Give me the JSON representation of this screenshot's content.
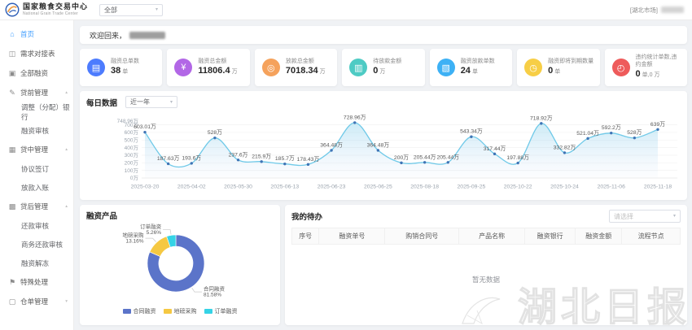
{
  "header": {
    "brand_name": "国家粮食交易中心",
    "brand_subtitle": "National Grain Trade Center",
    "market_filter_value": "全部",
    "user_market_tag": "[湖北市场]"
  },
  "icons": {
    "chevron_down": "▾",
    "chevron_up": "▴"
  },
  "sidebar": {
    "items": [
      {
        "label": "首页",
        "glyph": "⌂",
        "active": true
      },
      {
        "label": "需求对接表",
        "glyph": "◫"
      },
      {
        "label": "全部融资",
        "glyph": "▣"
      },
      {
        "label": "贷前管理",
        "glyph": "✎",
        "chevron": "▴"
      },
      {
        "label": "调整（分配）银行"
      },
      {
        "label": "融资审核"
      },
      {
        "label": "贷中管理",
        "glyph": "▦",
        "chevron": "▴"
      },
      {
        "label": "协议签订"
      },
      {
        "label": "放款入账"
      },
      {
        "label": "贷后管理",
        "glyph": "▩",
        "chevron": "▴"
      },
      {
        "label": "还款审核"
      },
      {
        "label": "商务还款审核"
      },
      {
        "label": "融资解冻"
      },
      {
        "label": "特殊处理",
        "glyph": "⚑"
      },
      {
        "label": "仓单管理",
        "glyph": "▢",
        "chevron": "▾"
      }
    ]
  },
  "welcome": {
    "greeting": "欢迎回来，"
  },
  "stats": {
    "cards": [
      {
        "label": "融资总单数",
        "value": "38",
        "unit": "单",
        "color": "#4d7cfe",
        "glyph": "▤"
      },
      {
        "label": "融资总金额",
        "value": "11806.4",
        "unit": "万",
        "color": "#b267e6",
        "glyph": "¥"
      },
      {
        "label": "放款总金额",
        "value": "7018.34",
        "unit": "万",
        "color": "#f5a25c",
        "glyph": "◎"
      },
      {
        "label": "待放款金额",
        "value": "0",
        "unit": "万",
        "color": "#4ecbc4",
        "glyph": "▥"
      },
      {
        "label": "融资放款单数",
        "value": "24",
        "unit": "单",
        "color": "#3db1f5",
        "glyph": "▧"
      },
      {
        "label": "融资即将到期数量",
        "value": "0",
        "unit": "单",
        "color": "#f7ce46",
        "glyph": "◷"
      },
      {
        "label": "违约统计单数,违约金额",
        "value": "0",
        "unit": "单,0 万",
        "color": "#ee5b5b",
        "glyph": "◴"
      }
    ]
  },
  "daily": {
    "title": "每日数据",
    "range_value": "近一年"
  },
  "products": {
    "title": "融资产品",
    "legend": [
      "合同融资",
      "地磅采购",
      "订单融资"
    ]
  },
  "todo": {
    "title": "我的待办",
    "select_placeholder": "请选择",
    "columns": [
      "序号",
      "融资单号",
      "购销合同号",
      "产品名称",
      "融资银行",
      "融资金额",
      "流程节点"
    ],
    "empty_text": "暂无数据"
  },
  "watermark": {
    "text": "湖北日报"
  },
  "chart_data": [
    {
      "type": "line",
      "title": "每日数据",
      "range_label": "近一年",
      "x": [
        "2025-03-20",
        "2025-04-02",
        "2025-05-30",
        "2025-06-13",
        "2025-06-23",
        "2025-06-25",
        "2025-08-18",
        "2025-09-25",
        "2025-10-22",
        "2025-10-24",
        "2025-11-06",
        "2025-11-18"
      ],
      "values": [
        603.01,
        187.63,
        193.6,
        528,
        237.6,
        215.9,
        185.7,
        178.43,
        364.48,
        728.96,
        364.48,
        200,
        205.44,
        205.44,
        543.34,
        317.44,
        197.88,
        718.92,
        332.82,
        521.04,
        592.2,
        528,
        639
      ],
      "unit": "万",
      "ylim": [
        0,
        760
      ],
      "y_ticks": [
        0,
        100,
        200,
        300,
        400,
        500,
        600,
        700
      ],
      "y_max_tick": 748.96,
      "x_tick_every": 2,
      "grid": true,
      "line_color": "#6fc9e8",
      "point_color": "#3f74b5",
      "area_from": "rgba(111,201,232,0.35)",
      "area_to": "rgba(170,200,240,0.03)"
    },
    {
      "type": "pie",
      "title": "融资产品",
      "legend_position": "bottom",
      "slices": [
        {
          "name": "合同融资",
          "pct": 81.58,
          "color": "#5b74c9"
        },
        {
          "name": "地磅采购",
          "pct": 13.16,
          "color": "#f5c842"
        },
        {
          "name": "订单融资",
          "pct": 5.26,
          "color": "#35d3e6"
        }
      ]
    }
  ]
}
